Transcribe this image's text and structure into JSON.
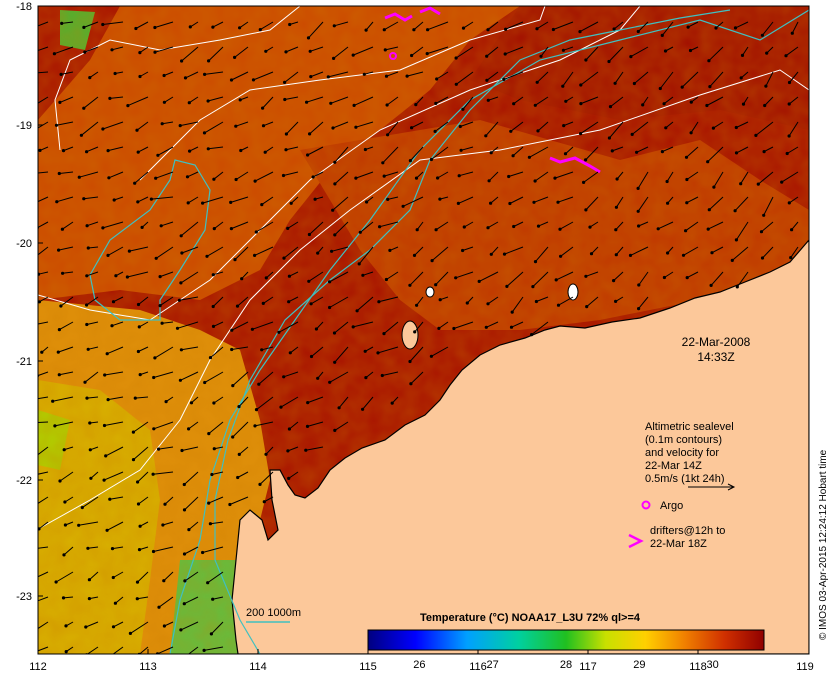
{
  "map": {
    "lon_ticks": [
      "112",
      "113",
      "114",
      "115",
      "116",
      "117",
      "118",
      "119"
    ],
    "lat_ticks": [
      "-18",
      "-19",
      "-20",
      "-21",
      "-22",
      "-23"
    ],
    "lon_range": [
      112,
      119
    ],
    "lat_range": [
      -18,
      -23.5
    ]
  },
  "date_label": "22-Mar-2008",
  "time_label": "14:33Z",
  "legend": {
    "sealevel_line1": "Altimetric sealevel",
    "sealevel_line2": "(0.1m contours)",
    "sealevel_line3": "and velocity for",
    "sealevel_line4": "22-Mar 14Z",
    "sealevel_line5": "0.5m/s (1kt 24h)",
    "argo_label": "Argo",
    "drifters_line1": "drifters@12h to",
    "drifters_line2": "22-Mar 18Z",
    "bathymetry_label": "200  1000m"
  },
  "colorbar": {
    "title": "Temperature (°C) NOAA17_L3U 72% ql>=4",
    "ticks": [
      "26",
      "27",
      "28",
      "29",
      "30"
    ],
    "tick_values": [
      26,
      27,
      28,
      29,
      30
    ],
    "range": [
      25.3,
      30.7
    ]
  },
  "credit": "© IMOS 03-Apr-2015 12:24:12 Hobart time",
  "colors": {
    "land": "#fcc89a",
    "sst_hot": "#a01000",
    "sst_warm": "#cc4a00",
    "sst_mid": "#e08a00",
    "sst_cool": "#c8cc00",
    "contour_white": "#ffffff",
    "isobath_cyan": "#40c0c0",
    "argo_magenta": "#ff00ff"
  }
}
